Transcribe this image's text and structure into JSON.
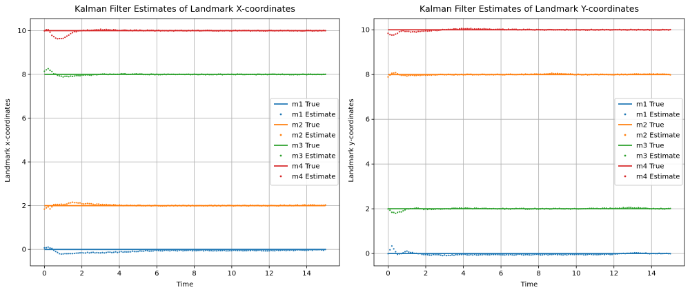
{
  "colors": {
    "m1": "#1f77b4",
    "m2": "#ff7f0e",
    "m3": "#2ca02c",
    "m4": "#d62728",
    "grid": "#b0b0b0",
    "axes": "#000000"
  },
  "chart_data": [
    {
      "type": "line",
      "title": "Kalman Filter Estimates of Landmark X-coordinates",
      "xlabel": "Time",
      "ylabel": "Landmark x-coordinates",
      "xlim": [
        -0.75,
        15.75
      ],
      "ylim": [
        -0.75,
        10.55
      ],
      "xticks": [
        0,
        2,
        4,
        6,
        8,
        10,
        12,
        14
      ],
      "yticks": [
        0,
        2,
        4,
        6,
        8,
        10
      ],
      "grid": true,
      "legend_position": "center-right",
      "time_range": [
        0,
        15
      ],
      "series": [
        {
          "name": "m1 True",
          "kind": "line",
          "color_key": "m1",
          "x": [
            0,
            15
          ],
          "y": [
            0,
            0
          ]
        },
        {
          "name": "m1 Estimate",
          "kind": "points",
          "color_key": "m1",
          "x": [
            0,
            0.2,
            0.4,
            0.6,
            0.8,
            1,
            1.5,
            2,
            3,
            4,
            5,
            6,
            7,
            8,
            10,
            12,
            14,
            15
          ],
          "y": [
            0.08,
            0.1,
            0.06,
            -0.1,
            -0.2,
            -0.2,
            -0.18,
            -0.15,
            -0.15,
            -0.12,
            -0.08,
            -0.05,
            -0.05,
            -0.05,
            -0.05,
            -0.05,
            -0.03,
            -0.02
          ]
        },
        {
          "name": "m2 True",
          "kind": "line",
          "color_key": "m2",
          "x": [
            0,
            15
          ],
          "y": [
            2,
            2
          ]
        },
        {
          "name": "m2 Estimate",
          "kind": "points",
          "color_key": "m2",
          "x": [
            0,
            0.2,
            0.3,
            0.5,
            1,
            1.5,
            2,
            3,
            4,
            6,
            8,
            10,
            12,
            14,
            15
          ],
          "y": [
            1.85,
            1.95,
            1.85,
            2.05,
            2.05,
            2.15,
            2.1,
            2.05,
            2.02,
            2.0,
            2.0,
            2.0,
            2.0,
            2.02,
            2.02
          ]
        },
        {
          "name": "m3 True",
          "kind": "line",
          "color_key": "m3",
          "x": [
            0,
            15
          ],
          "y": [
            8,
            8
          ]
        },
        {
          "name": "m3 Estimate",
          "kind": "points",
          "color_key": "m3",
          "x": [
            0,
            0.2,
            0.3,
            0.5,
            0.8,
            1,
            1.5,
            2,
            3,
            4,
            6,
            8,
            10,
            12,
            14,
            15
          ],
          "y": [
            8.15,
            8.25,
            8.2,
            8.05,
            7.92,
            7.9,
            7.92,
            7.95,
            8.0,
            8.02,
            8.0,
            8.0,
            8.0,
            8.0,
            8.0,
            8.0
          ]
        },
        {
          "name": "m4 True",
          "kind": "line",
          "color_key": "m4",
          "x": [
            0,
            15
          ],
          "y": [
            10,
            10
          ]
        },
        {
          "name": "m4 Estimate",
          "kind": "points",
          "color_key": "m4",
          "x": [
            0,
            0.2,
            0.4,
            0.6,
            0.8,
            1,
            1.3,
            1.6,
            2,
            3,
            4,
            6,
            8,
            10,
            12,
            14,
            15
          ],
          "y": [
            10.0,
            10.05,
            9.8,
            9.65,
            9.62,
            9.65,
            9.8,
            9.95,
            10.0,
            10.05,
            10.02,
            10.0,
            10.0,
            10.0,
            10.0,
            10.0,
            10.0
          ]
        }
      ]
    },
    {
      "type": "line",
      "title": "Kalman Filter Estimates of Landmark Y-coordinates",
      "xlabel": "Time",
      "ylabel": "Landmark y-coordinates",
      "xlim": [
        -0.75,
        15.75
      ],
      "ylim": [
        -0.55,
        10.5
      ],
      "xticks": [
        0,
        2,
        4,
        6,
        8,
        10,
        12,
        14
      ],
      "yticks": [
        0,
        2,
        4,
        6,
        8,
        10
      ],
      "grid": true,
      "legend_position": "center-right",
      "time_range": [
        0,
        15
      ],
      "series": [
        {
          "name": "m1 True",
          "kind": "line",
          "color_key": "m1",
          "x": [
            0,
            15
          ],
          "y": [
            0,
            0
          ]
        },
        {
          "name": "m1 Estimate",
          "kind": "points",
          "color_key": "m1",
          "x": [
            0,
            0.2,
            0.3,
            0.5,
            0.7,
            1,
            1.5,
            2,
            3,
            4,
            5,
            6,
            8,
            10,
            12,
            13,
            14,
            15
          ],
          "y": [
            0.0,
            0.35,
            0.2,
            -0.05,
            0.0,
            0.1,
            0.0,
            -0.05,
            -0.08,
            -0.05,
            -0.05,
            -0.05,
            -0.05,
            -0.05,
            -0.03,
            0.03,
            0.0,
            0.0
          ]
        },
        {
          "name": "m2 True",
          "kind": "line",
          "color_key": "m2",
          "x": [
            0,
            15
          ],
          "y": [
            8,
            8
          ]
        },
        {
          "name": "m2 Estimate",
          "kind": "points",
          "color_key": "m2",
          "x": [
            0,
            0.2,
            0.4,
            0.6,
            1,
            2,
            3,
            4,
            6,
            8,
            9,
            10,
            12,
            14,
            15
          ],
          "y": [
            7.9,
            8.05,
            8.1,
            7.98,
            7.95,
            7.98,
            8.0,
            8.0,
            8.0,
            8.02,
            8.05,
            8.0,
            8.0,
            8.02,
            8.0
          ]
        },
        {
          "name": "m3 True",
          "kind": "line",
          "color_key": "m3",
          "x": [
            0,
            15
          ],
          "y": [
            2,
            2
          ]
        },
        {
          "name": "m3 Estimate",
          "kind": "points",
          "color_key": "m3",
          "x": [
            0,
            0.2,
            0.4,
            0.6,
            0.8,
            1,
            1.5,
            2,
            3,
            4,
            6,
            8,
            10,
            12,
            13,
            14,
            15
          ],
          "y": [
            2.0,
            1.85,
            1.8,
            1.85,
            1.9,
            2.0,
            2.02,
            1.98,
            2.0,
            2.02,
            2.0,
            2.0,
            2.0,
            2.02,
            2.05,
            2.0,
            2.0
          ]
        },
        {
          "name": "m4 True",
          "kind": "line",
          "color_key": "m4",
          "x": [
            0,
            15
          ],
          "y": [
            10,
            10
          ]
        },
        {
          "name": "m4 Estimate",
          "kind": "points",
          "color_key": "m4",
          "x": [
            0,
            0.2,
            0.4,
            0.6,
            0.8,
            1,
            1.5,
            2,
            3,
            4,
            6,
            8,
            10,
            12,
            14,
            15
          ],
          "y": [
            9.85,
            9.75,
            9.8,
            9.9,
            9.95,
            9.92,
            9.9,
            9.95,
            10.0,
            10.05,
            10.02,
            10.0,
            10.0,
            10.0,
            10.0,
            10.0
          ]
        }
      ]
    }
  ]
}
